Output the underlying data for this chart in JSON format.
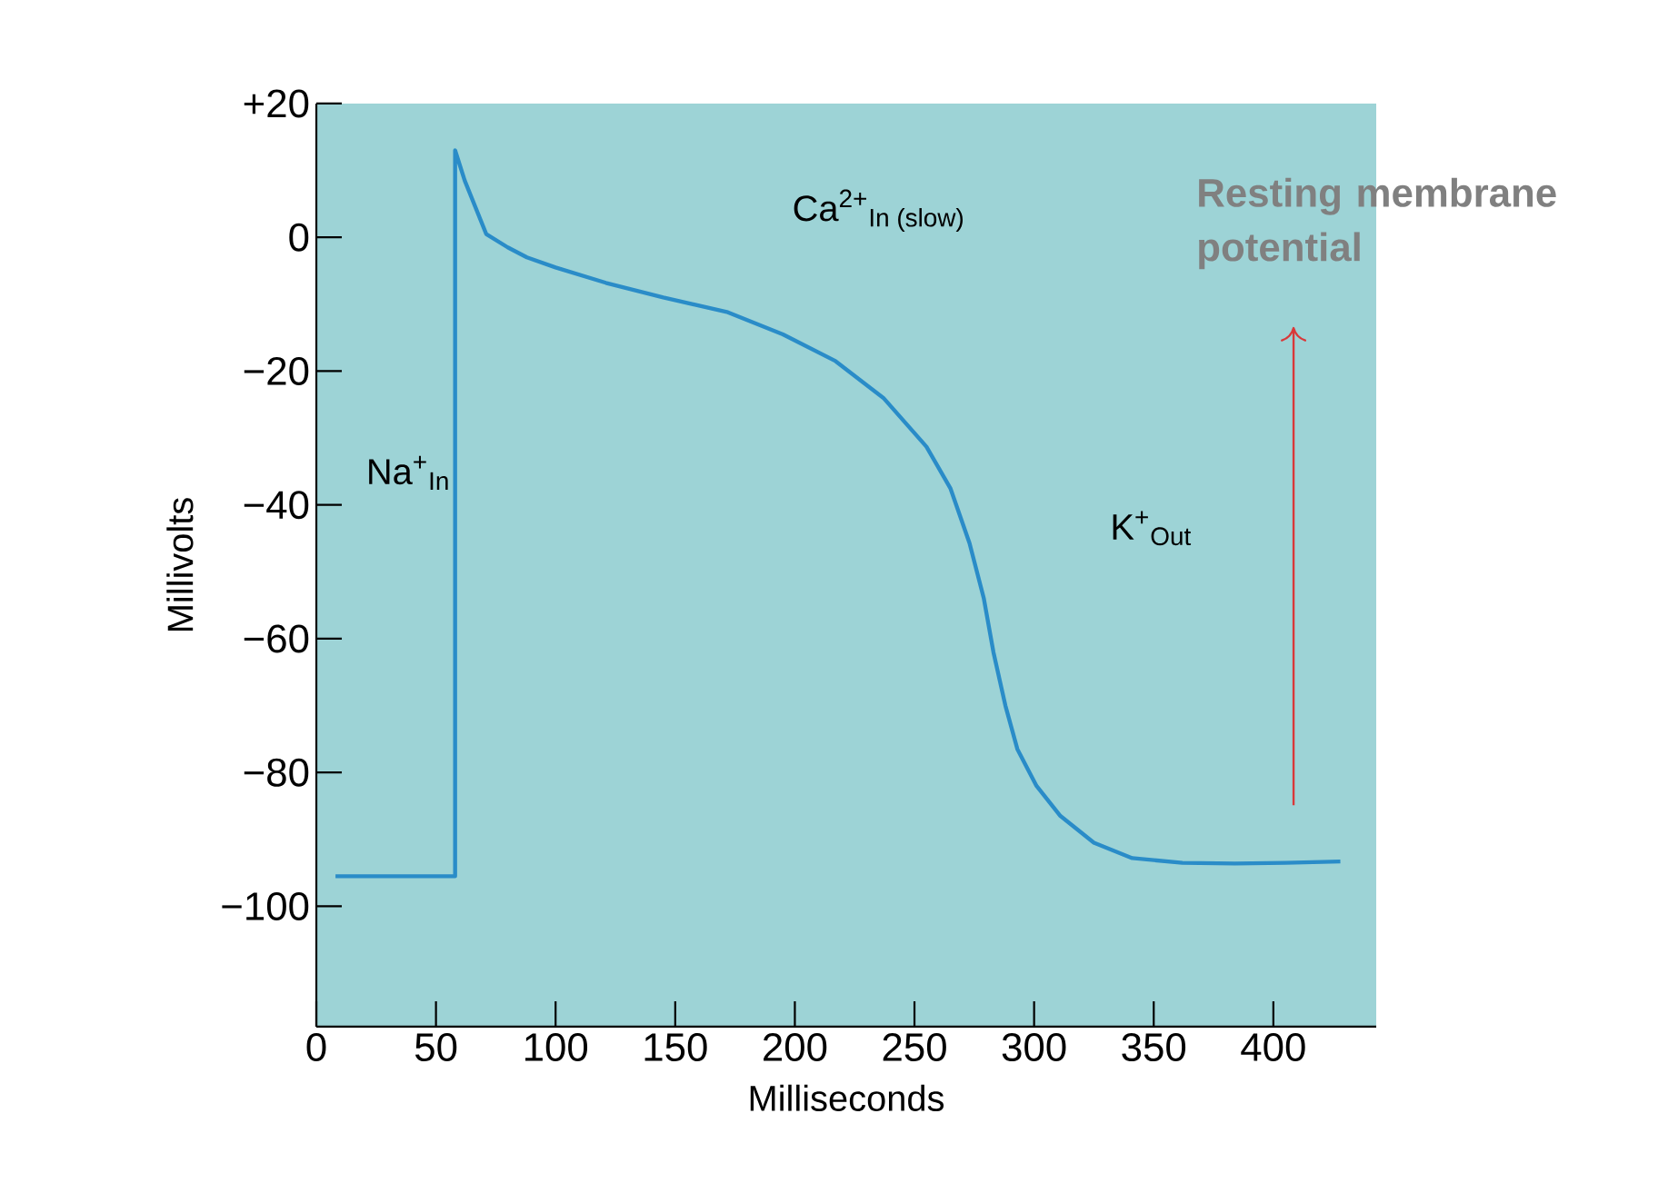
{
  "chart_data": {
    "type": "line",
    "xlabel": "Milliseconds",
    "ylabel": "Millivolts",
    "xlim": [
      0,
      443
    ],
    "ylim": [
      -118,
      20
    ],
    "xticks": [
      0,
      50,
      100,
      150,
      200,
      250,
      300,
      350,
      400
    ],
    "yticks": [
      {
        "value": 20,
        "label": "+20"
      },
      0,
      {
        "value": -20,
        "label": "−20"
      },
      {
        "value": -40,
        "label": "−40"
      },
      {
        "value": -60,
        "label": "−60"
      },
      {
        "value": -80,
        "label": "−80"
      },
      {
        "value": -100,
        "label": "−100"
      }
    ],
    "grid": false,
    "marker": "none",
    "line_style": "solid",
    "series": [
      {
        "color": "#2a8cc8",
        "x": [
          8,
          58,
          58,
          62,
          71,
          80,
          88,
          100,
          121,
          145,
          172,
          195,
          217,
          237,
          255,
          265,
          273,
          279,
          283,
          288,
          293,
          301,
          311,
          325,
          341,
          362,
          384,
          405,
          428
        ],
        "values": [
          -95.5,
          -95.5,
          13,
          8.5,
          0.5,
          -1.5,
          -3,
          -4.5,
          -6.8,
          -9,
          -11.2,
          -14.5,
          -18.5,
          -24,
          -31.3,
          -37.5,
          -45.7,
          -54,
          -62,
          -70,
          -76.5,
          -82,
          -86.5,
          -90.5,
          -92.8,
          -93.5,
          -93.6,
          -93.5,
          -93.3
        ]
      }
    ],
    "annotations": [
      "Na$^{+}$$_{In}$",
      "Ca$^{2+}$$_{In (slow)}$",
      "K$^{+}$$_{Out}$",
      "Resting membrane potential"
    ]
  }
}
